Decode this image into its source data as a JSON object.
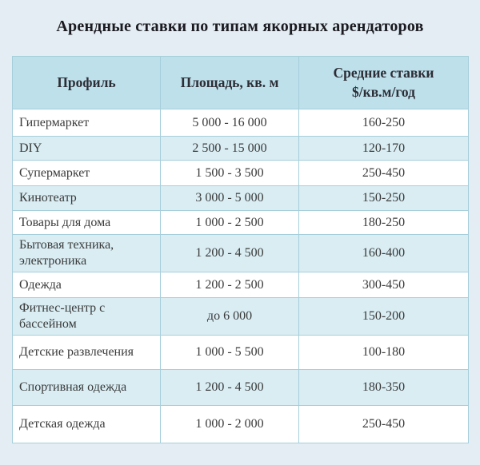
{
  "title": "Арендные ставки по типам якорных арендаторов",
  "colors": {
    "page_bg": "#e3edf3",
    "header_bg": "#bde0ea",
    "row_alt_bg": "#d9edf3",
    "border": "#a6cfdb",
    "title_color": "#1a1a20",
    "header_text": "#2d2d36",
    "cell_text": "#3a3a3a"
  },
  "chart_data": {
    "type": "table",
    "title": "Арендные ставки по типам якорных арендаторов",
    "columns": [
      "Профиль",
      "Площадь, кв. м",
      "Средние ставки\n$/кв.м/год"
    ],
    "rows": [
      {
        "profile": "Гипермаркет",
        "area": "5 000 - 16 000",
        "rate": "160-250"
      },
      {
        "profile": "DIY",
        "area": "2 500 - 15 000",
        "rate": "120-170"
      },
      {
        "profile": "Супермаркет",
        "area": "1 500 - 3 500",
        "rate": "250-450"
      },
      {
        "profile": "Кинотеатр",
        "area": "3 000 - 5 000",
        "rate": "150-250"
      },
      {
        "profile": "Товары для дома",
        "area": "1 000 - 2 500",
        "rate": "180-250"
      },
      {
        "profile": "Бытовая техника, электроника",
        "area": "1 200 - 4 500",
        "rate": "160-400"
      },
      {
        "profile": "Одежда",
        "area": "1 200 - 2 500",
        "rate": "300-450"
      },
      {
        "profile": "Фитнес-центр с бассейном",
        "area": "до 6 000",
        "rate": "150-200"
      },
      {
        "profile": "Детские развлечения",
        "area": "1 000 - 5 500",
        "rate": "100-180"
      },
      {
        "profile": "Спортивная одежда",
        "area": "1 200 - 4 500",
        "rate": "180-350"
      },
      {
        "profile": "Детская одежда",
        "area": "1 000 - 2 000",
        "rate": "250-450"
      }
    ]
  }
}
